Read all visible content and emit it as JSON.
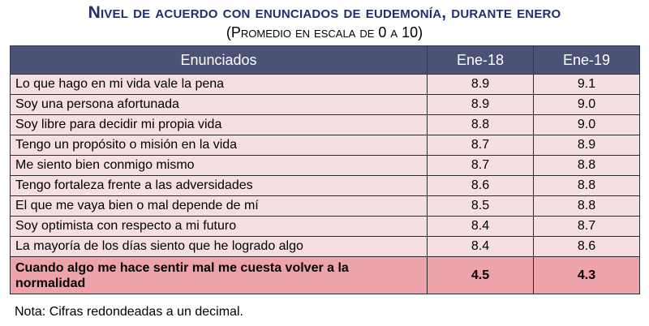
{
  "title": "Nivel de acuerdo con enunciados de eudemonía, durante enero",
  "subtitle": "(Promedio en escala de 0 a 10)",
  "chart_data": {
    "type": "table",
    "columns": [
      "Enunciados",
      "Ene-18",
      "Ene-19"
    ],
    "rows": [
      {
        "label": "Lo que hago en mi vida vale la pena",
        "v18": "8.9",
        "v19": "9.1"
      },
      {
        "label": "Soy una persona afortunada",
        "v18": "8.9",
        "v19": "9.0"
      },
      {
        "label": "Soy libre para decidir mi propia vida",
        "v18": "8.8",
        "v19": "9.0"
      },
      {
        "label": "Tengo un propósito o misión en la vida",
        "v18": "8.7",
        "v19": "8.9"
      },
      {
        "label": "Me siento bien conmigo mismo",
        "v18": "8.7",
        "v19": "8.8"
      },
      {
        "label": "Tengo fortaleza frente a las adversidades",
        "v18": "8.6",
        "v19": "8.8"
      },
      {
        "label": "El que me vaya bien o mal depende de mí",
        "v18": "8.5",
        "v19": "8.8"
      },
      {
        "label": "Soy optimista con respecto a mi futuro",
        "v18": "8.4",
        "v19": "8.7"
      },
      {
        "label": "La mayoría de los días siento que he logrado algo",
        "v18": "8.4",
        "v19": "8.6"
      },
      {
        "label": "Cuando algo me hace sentir mal me cuesta volver a la normalidad",
        "v18": "4.5",
        "v19": "4.3"
      }
    ],
    "note": "Nota:  Cifras redondeadas a un decimal."
  },
  "colors": {
    "title": "#1f2f6e",
    "header_bg": "#4a5276",
    "row_bg": "#f5dfe2",
    "highlight_row_bg": "#eea2aa"
  }
}
